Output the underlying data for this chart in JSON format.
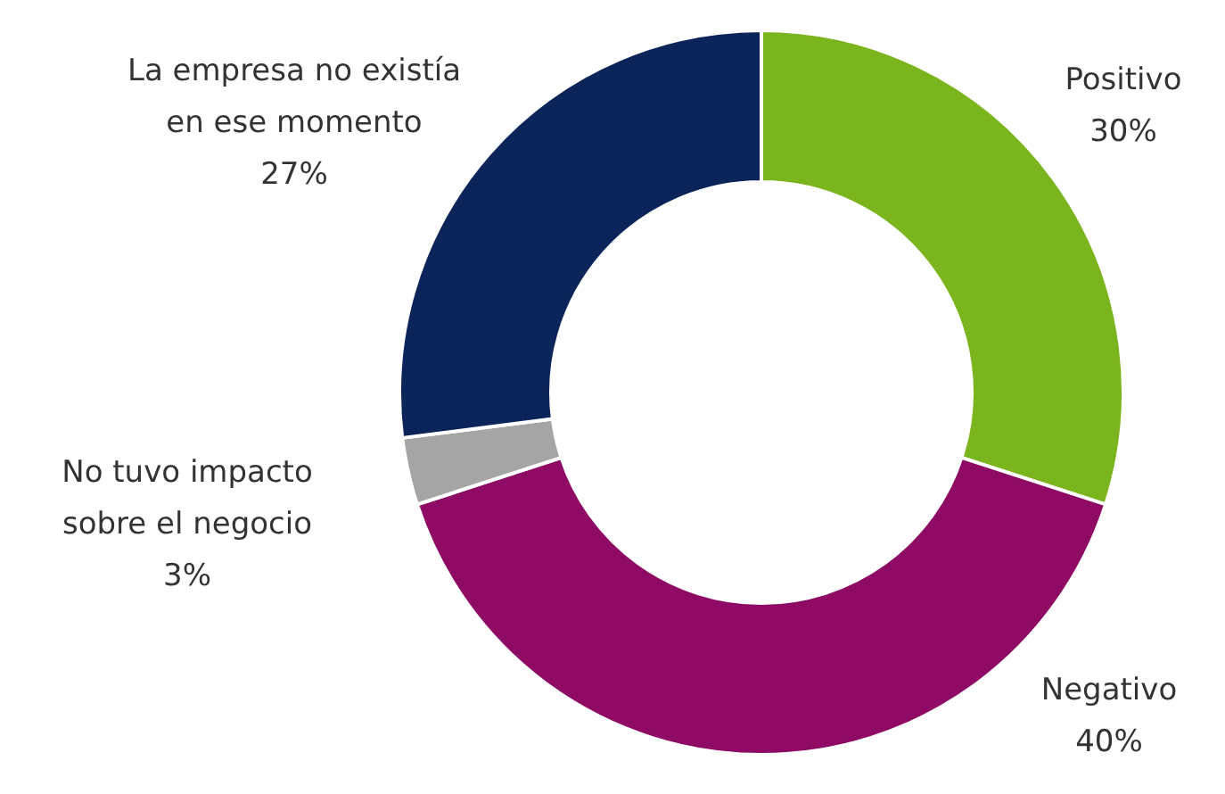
{
  "chart_data": {
    "type": "donut",
    "categories": [
      "Positivo",
      "Negativo",
      "No tuvo impacto sobre el negocio",
      "La empresa no existía en ese momento"
    ],
    "values": [
      30,
      40,
      3,
      27
    ],
    "colors": [
      "#7ab51d",
      "#8e0a64",
      "#a5a5a5",
      "#0b2459"
    ],
    "value_labels": [
      "30%",
      "40%",
      "3%",
      "27%"
    ],
    "legend": false
  }
}
